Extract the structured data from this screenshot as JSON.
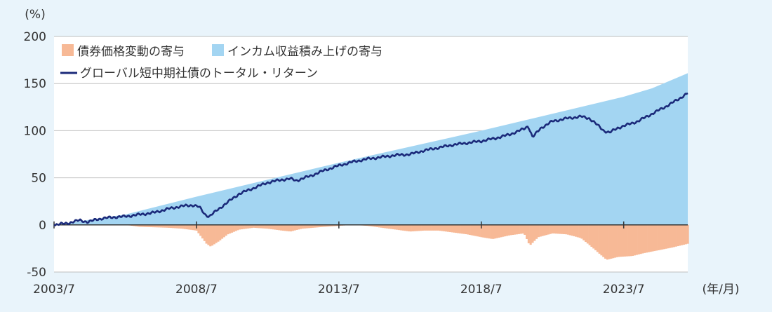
{
  "chart_data": {
    "type": "area",
    "ylabel": "(%)",
    "xunit": "(年/月)",
    "ylim": [
      -50,
      200
    ],
    "yticks": [
      200,
      150,
      100,
      50,
      0,
      -50
    ],
    "xlim": [
      2003.5,
      2025.75
    ],
    "xticks": [
      {
        "label": "2003/7",
        "x": 2003.5
      },
      {
        "label": "2008/7",
        "x": 2008.5
      },
      {
        "label": "2013/7",
        "x": 2013.5
      },
      {
        "label": "2018/7",
        "x": 2018.5
      },
      {
        "label": "2023/7",
        "x": 2023.5
      }
    ],
    "grid": true,
    "legend_position": "top-left",
    "colors": {
      "income": "#a3d5f2",
      "price": "#f7b996",
      "total": "#1b2a7a",
      "grid": "#bfbfbf",
      "zero": "#333333",
      "plot_bg": "#ffffff"
    },
    "series": [
      {
        "name": "債券価格変動の寄与",
        "kind": "bar-area",
        "points": [
          [
            2003.5,
            0
          ],
          [
            2006.0,
            0
          ],
          [
            2006.5,
            -2
          ],
          [
            2007.5,
            -3
          ],
          [
            2008.0,
            -4
          ],
          [
            2008.5,
            -6
          ],
          [
            2008.85,
            -20
          ],
          [
            2009.0,
            -23
          ],
          [
            2009.3,
            -17
          ],
          [
            2009.6,
            -10
          ],
          [
            2010.0,
            -5
          ],
          [
            2010.5,
            -3
          ],
          [
            2011.0,
            -4
          ],
          [
            2011.5,
            -6
          ],
          [
            2011.8,
            -7
          ],
          [
            2012.2,
            -4
          ],
          [
            2013.0,
            -2
          ],
          [
            2013.5,
            -1
          ],
          [
            2014.0,
            0
          ],
          [
            2014.5,
            -1
          ],
          [
            2015.0,
            -3
          ],
          [
            2015.5,
            -5
          ],
          [
            2016.0,
            -7
          ],
          [
            2016.5,
            -6
          ],
          [
            2017.0,
            -6
          ],
          [
            2017.5,
            -8
          ],
          [
            2018.0,
            -10
          ],
          [
            2018.5,
            -13
          ],
          [
            2018.9,
            -15
          ],
          [
            2019.5,
            -11
          ],
          [
            2020.0,
            -9
          ],
          [
            2020.2,
            -22
          ],
          [
            2020.5,
            -13
          ],
          [
            2021.0,
            -9
          ],
          [
            2021.5,
            -10
          ],
          [
            2022.0,
            -14
          ],
          [
            2022.4,
            -24
          ],
          [
            2022.7,
            -32
          ],
          [
            2022.9,
            -37
          ],
          [
            2023.3,
            -34
          ],
          [
            2023.8,
            -33
          ],
          [
            2024.2,
            -30
          ],
          [
            2024.7,
            -27
          ],
          [
            2025.2,
            -24
          ],
          [
            2025.75,
            -20
          ]
        ]
      },
      {
        "name": "インカム収益積み上げの寄与",
        "kind": "area",
        "points": [
          [
            2003.5,
            0
          ],
          [
            2006.0,
            11
          ],
          [
            2008.5,
            30
          ],
          [
            2013.5,
            66
          ],
          [
            2018.5,
            100
          ],
          [
            2023.5,
            136
          ],
          [
            2024.5,
            145
          ],
          [
            2025.75,
            161
          ]
        ]
      },
      {
        "name": "グローバル短中期社債のトータル・リターン",
        "kind": "line",
        "points": [
          [
            2003.5,
            0
          ],
          [
            2004.0,
            2
          ],
          [
            2004.4,
            5
          ],
          [
            2004.7,
            3
          ],
          [
            2005.0,
            6
          ],
          [
            2005.5,
            8
          ],
          [
            2006.0,
            9
          ],
          [
            2006.5,
            11
          ],
          [
            2007.0,
            13
          ],
          [
            2007.5,
            17
          ],
          [
            2008.0,
            20
          ],
          [
            2008.4,
            21
          ],
          [
            2008.6,
            19
          ],
          [
            2008.8,
            11
          ],
          [
            2008.95,
            9
          ],
          [
            2009.2,
            15
          ],
          [
            2009.5,
            22
          ],
          [
            2010.0,
            33
          ],
          [
            2010.5,
            39
          ],
          [
            2011.0,
            45
          ],
          [
            2011.5,
            48
          ],
          [
            2011.8,
            49
          ],
          [
            2012.0,
            47
          ],
          [
            2012.5,
            52
          ],
          [
            2013.0,
            58
          ],
          [
            2013.5,
            63
          ],
          [
            2014.0,
            67
          ],
          [
            2014.5,
            70
          ],
          [
            2015.0,
            72
          ],
          [
            2015.5,
            74
          ],
          [
            2016.0,
            75
          ],
          [
            2016.5,
            79
          ],
          [
            2017.0,
            82
          ],
          [
            2017.5,
            85
          ],
          [
            2018.0,
            87
          ],
          [
            2018.5,
            89
          ],
          [
            2019.0,
            92
          ],
          [
            2019.5,
            96
          ],
          [
            2020.0,
            102
          ],
          [
            2020.15,
            105
          ],
          [
            2020.3,
            93
          ],
          [
            2020.6,
            103
          ],
          [
            2021.0,
            110
          ],
          [
            2021.5,
            113
          ],
          [
            2022.0,
            115
          ],
          [
            2022.3,
            113
          ],
          [
            2022.5,
            108
          ],
          [
            2022.8,
            100
          ],
          [
            2023.0,
            98
          ],
          [
            2023.3,
            103
          ],
          [
            2023.7,
            107
          ],
          [
            2024.0,
            110
          ],
          [
            2024.5,
            118
          ],
          [
            2025.0,
            126
          ],
          [
            2025.4,
            133
          ],
          [
            2025.75,
            140
          ]
        ]
      }
    ]
  }
}
